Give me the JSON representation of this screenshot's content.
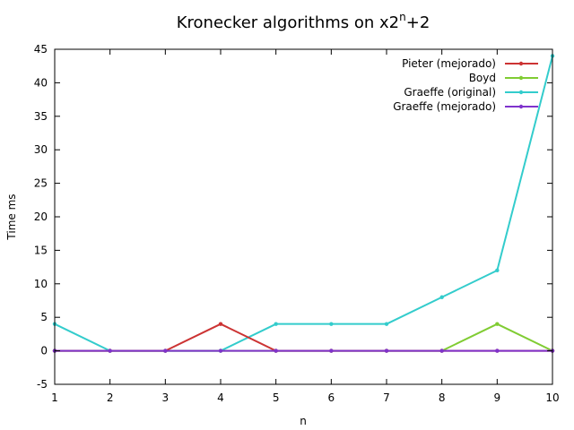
{
  "chart_data": {
    "type": "line",
    "title": {
      "main": "Kronecker algorithms on x",
      "sup_base": "2",
      "sup_exp": "n",
      "suffix": "+2"
    },
    "xlabel": "n",
    "ylabel": "Time ms",
    "x": [
      1,
      2,
      3,
      4,
      5,
      6,
      7,
      8,
      9,
      10
    ],
    "xlim": [
      1,
      10
    ],
    "ylim": [
      -5,
      45
    ],
    "x_ticks": [
      "1",
      "2",
      "3",
      "4",
      "5",
      "6",
      "7",
      "8",
      "9",
      "10"
    ],
    "y_ticks": [
      "-5",
      "0",
      "5",
      "10",
      "15",
      "20",
      "25",
      "30",
      "35",
      "40",
      "45"
    ],
    "y_tick_values": [
      -5,
      0,
      5,
      10,
      15,
      20,
      25,
      30,
      35,
      40,
      45
    ],
    "grid": false,
    "legend_position": "top-right",
    "series": [
      {
        "name": "Pieter (mejorado)",
        "color": "#cc3333",
        "values": [
          0,
          0,
          0,
          4,
          0,
          0,
          0,
          0,
          0,
          0
        ]
      },
      {
        "name": "Boyd",
        "color": "#80cc33",
        "values": [
          0,
          0,
          0,
          0,
          0,
          0,
          0,
          0,
          4,
          0
        ]
      },
      {
        "name": "Graeffe (original)",
        "color": "#33cccc",
        "values": [
          4,
          0,
          0,
          0,
          4,
          4,
          4,
          8,
          12,
          44
        ]
      },
      {
        "name": "Graeffe (mejorado)",
        "color": "#7f33cc",
        "values": [
          0,
          0,
          0,
          0,
          0,
          0,
          0,
          0,
          0,
          0
        ]
      }
    ]
  }
}
